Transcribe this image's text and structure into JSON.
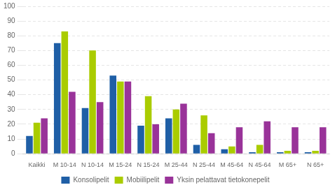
{
  "chart_data": {
    "type": "bar",
    "categories": [
      "Kaikki",
      "M 10-14",
      "N 10-14",
      "M 15-24",
      "N 15-24",
      "M 25-44",
      "N 25-44",
      "M 45-64",
      "N 45-64",
      "M 65+",
      "N 65+"
    ],
    "series": [
      {
        "name": "Konsolipelit",
        "color": "#1F5FA6",
        "values": [
          12,
          75,
          31,
          53,
          19,
          24,
          6,
          3,
          1,
          1,
          1
        ]
      },
      {
        "name": "Mobiilipelit",
        "color": "#AACC00",
        "values": [
          21,
          83,
          70,
          49,
          39,
          30,
          26,
          5,
          6,
          2,
          2
        ]
      },
      {
        "name": "Yksin pelattavat tietokonepelit",
        "color": "#993399",
        "values": [
          24,
          42,
          35,
          49,
          20,
          34,
          14,
          18,
          22,
          18,
          18
        ]
      }
    ],
    "ylim": [
      0,
      100
    ],
    "yticks": [
      0,
      10,
      20,
      30,
      40,
      50,
      60,
      70,
      80,
      90,
      100
    ],
    "grid": true,
    "legend": "bottom"
  }
}
